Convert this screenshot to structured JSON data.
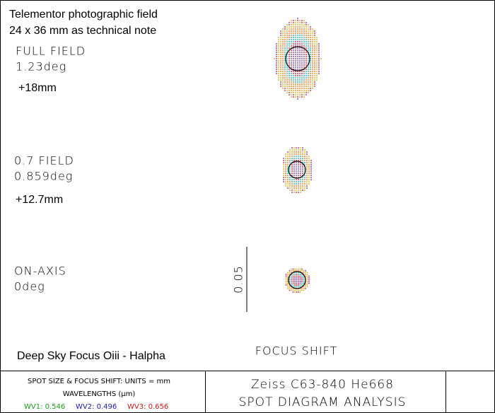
{
  "header": {
    "title": "Telementor photographic field",
    "subtitle": "24 x 36 mm as technical note"
  },
  "fields": [
    {
      "name": "FULL FIELD",
      "angle": "1.23deg",
      "focus_shift": "+18mm"
    },
    {
      "name": "0.7 FIELD",
      "angle": "0.859deg",
      "focus_shift": "+12.7mm"
    },
    {
      "name": "ON-AXIS",
      "angle": "0deg"
    }
  ],
  "scale_label": "0.05",
  "note": "Deep Sky Focus Oiii - Halpha",
  "focus_shift_label": "FOCUS SHIFT",
  "footer": {
    "units": "SPOT SIZE & FOCUS SHIFT: UNITS = mm",
    "wavelengths_title": "WAVELENGTHS (µm)",
    "wavelengths": [
      "WV1: 0.546",
      "WV2: 0.496",
      "WV3: 0.656"
    ],
    "lens": "Zeiss C63-840 He668",
    "analysis": "SPOT DIAGRAM ANALYSIS"
  }
}
